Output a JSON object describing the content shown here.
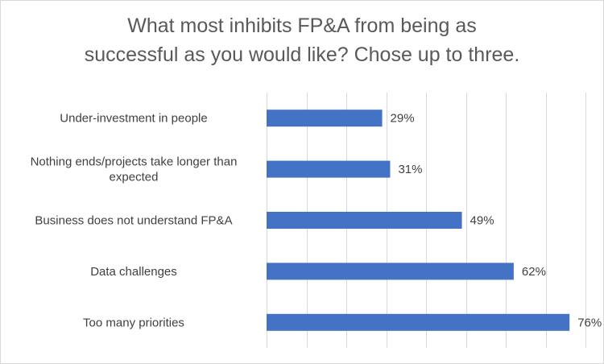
{
  "chart_data": {
    "type": "bar",
    "orientation": "horizontal",
    "title_lines": [
      "What most inhibits FP&A from being as",
      "successful  as you would like?  Chose up to three."
    ],
    "categories": [
      [
        "Under-investment in people"
      ],
      [
        "Nothing ends/projects take longer than",
        "expected"
      ],
      [
        "Business does not understand FP&A"
      ],
      [
        "Data challenges"
      ],
      [
        "Too many priorities"
      ]
    ],
    "values": [
      29,
      31,
      49,
      62,
      76
    ],
    "value_labels": [
      "29%",
      "31%",
      "49%",
      "62%",
      "76%"
    ],
    "xlim": [
      0,
      80
    ],
    "x_major_unit": 10,
    "grid": "vertical",
    "bar_color": "#4472c4",
    "grid_color": "#d9d9d9"
  }
}
